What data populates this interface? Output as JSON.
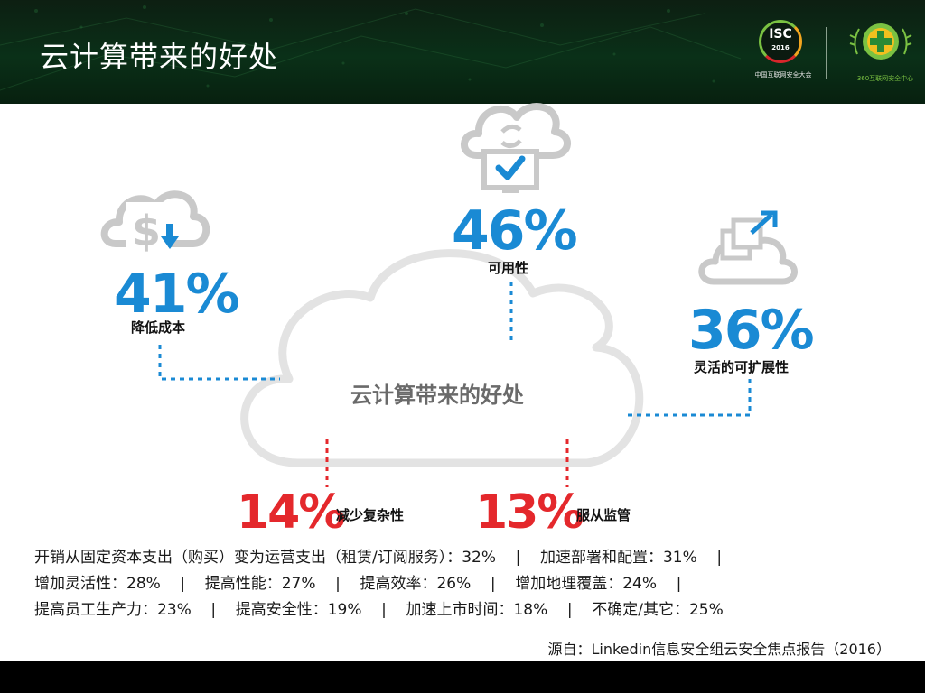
{
  "header": {
    "title": "云计算带来的好处",
    "isc_logo": {
      "name": "ISC",
      "year": "2016",
      "subtitle": "中国互联网安全大会"
    },
    "center_logo": {
      "subtitle": "360互联网安全中心"
    }
  },
  "cloud": {
    "title": "云计算带来的好处"
  },
  "stats": [
    {
      "value": "41%",
      "label": "降低成本",
      "icon": "cost-reduction-icon"
    },
    {
      "value": "46%",
      "label": "可用性",
      "icon": "availability-icon"
    },
    {
      "value": "36%",
      "label": "灵活的可扩展性",
      "icon": "scalability-icon"
    },
    {
      "value": "14%",
      "label": "减少复杂性"
    },
    {
      "value": "13%",
      "label": "服从监管"
    }
  ],
  "details": [
    "开销从固定资本支出（购买）变为运营支出（租赁/订阅服务）：32%    |    加速部署和配置：31%    |",
    "增加灵活性：28%    |    提高性能：27%    |    提高效率：26%    |    增加地理覆盖：24%    |",
    "提高员工生产力：23%    |    提高安全性：19%    |    加速上市时间：18%    |    不确定/其它：25%"
  ],
  "source": "源自：Linkedin信息安全组云安全焦点报告（2016）",
  "colors": {
    "accent_blue": "#1a8ad4",
    "accent_red": "#e4282c",
    "icon_gray": "#c9c9c9",
    "cloud_outline": "#e3e3e3"
  }
}
